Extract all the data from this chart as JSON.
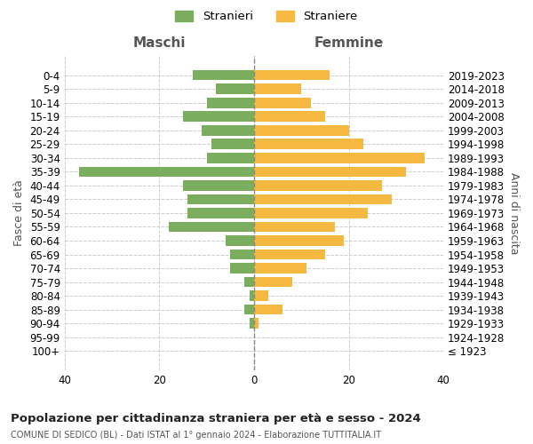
{
  "age_groups": [
    "100+",
    "95-99",
    "90-94",
    "85-89",
    "80-84",
    "75-79",
    "70-74",
    "65-69",
    "60-64",
    "55-59",
    "50-54",
    "45-49",
    "40-44",
    "35-39",
    "30-34",
    "25-29",
    "20-24",
    "15-19",
    "10-14",
    "5-9",
    "0-4"
  ],
  "birth_years": [
    "≤ 1923",
    "1924-1928",
    "1929-1933",
    "1934-1938",
    "1939-1943",
    "1944-1948",
    "1949-1953",
    "1954-1958",
    "1959-1963",
    "1964-1968",
    "1969-1973",
    "1974-1978",
    "1979-1983",
    "1984-1988",
    "1989-1993",
    "1994-1998",
    "1999-2003",
    "2004-2008",
    "2009-2013",
    "2014-2018",
    "2019-2023"
  ],
  "maschi": [
    0,
    0,
    1,
    2,
    1,
    2,
    5,
    5,
    6,
    18,
    14,
    14,
    15,
    37,
    10,
    9,
    11,
    15,
    10,
    8,
    13
  ],
  "femmine": [
    0,
    0,
    1,
    6,
    3,
    8,
    11,
    15,
    19,
    17,
    24,
    29,
    27,
    32,
    36,
    23,
    20,
    15,
    12,
    10,
    16
  ],
  "male_color": "#7aad5e",
  "female_color": "#f5b942",
  "background_color": "#ffffff",
  "grid_color": "#cccccc",
  "title": "Popolazione per cittadinanza straniera per età e sesso - 2024",
  "subtitle": "COMUNE DI SEDICO (BL) - Dati ISTAT al 1° gennaio 2024 - Elaborazione TUTTITALIA.IT",
  "xlabel_left": "Maschi",
  "xlabel_right": "Femmine",
  "ylabel_left": "Fasce di età",
  "ylabel_right": "Anni di nascita",
  "legend_male": "Stranieri",
  "legend_female": "Straniere",
  "xlim": 40
}
